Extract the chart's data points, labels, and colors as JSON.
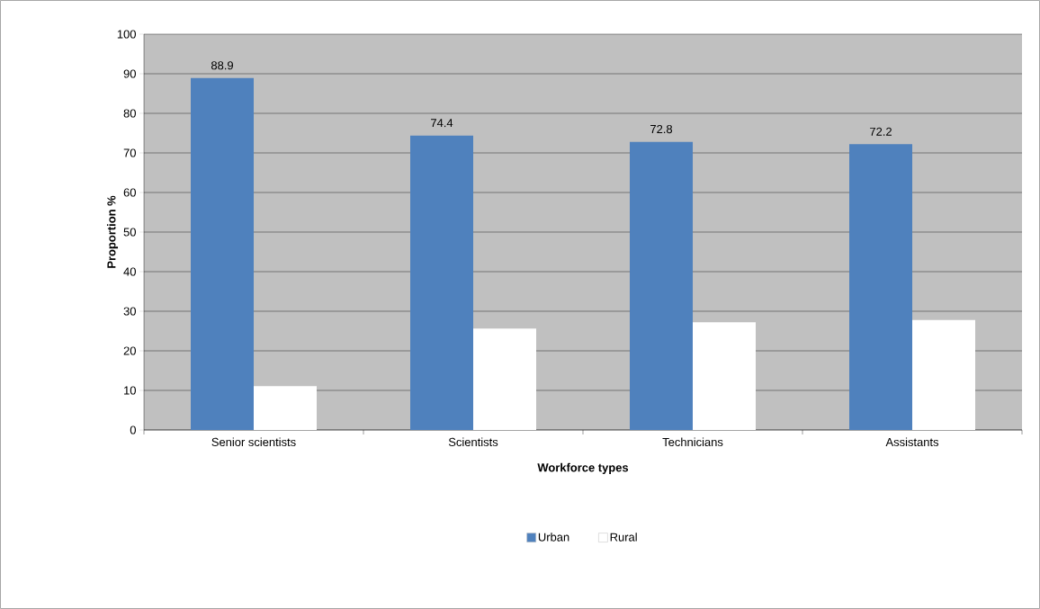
{
  "chart_data": {
    "type": "bar",
    "xlabel": "Workforce types",
    "ylabel": "Proportion %",
    "categories": [
      "Senior scientists",
      "Scientists",
      "Technicians",
      "Assistants"
    ],
    "series": [
      {
        "name": "Urban",
        "color": "#4f81bd",
        "values": [
          88.9,
          74.4,
          72.8,
          72.2
        ],
        "value_labels": [
          "88.9",
          "74.4",
          "72.8",
          "72.2"
        ]
      },
      {
        "name": "Rural",
        "color": "#ffffff",
        "values": [
          11.1,
          25.6,
          27.2,
          27.8
        ]
      }
    ],
    "ylim": [
      0,
      100
    ],
    "yticks": [
      0,
      10,
      20,
      30,
      40,
      50,
      60,
      70,
      80,
      90,
      100
    ],
    "grid": "y",
    "legend": "bottom"
  }
}
